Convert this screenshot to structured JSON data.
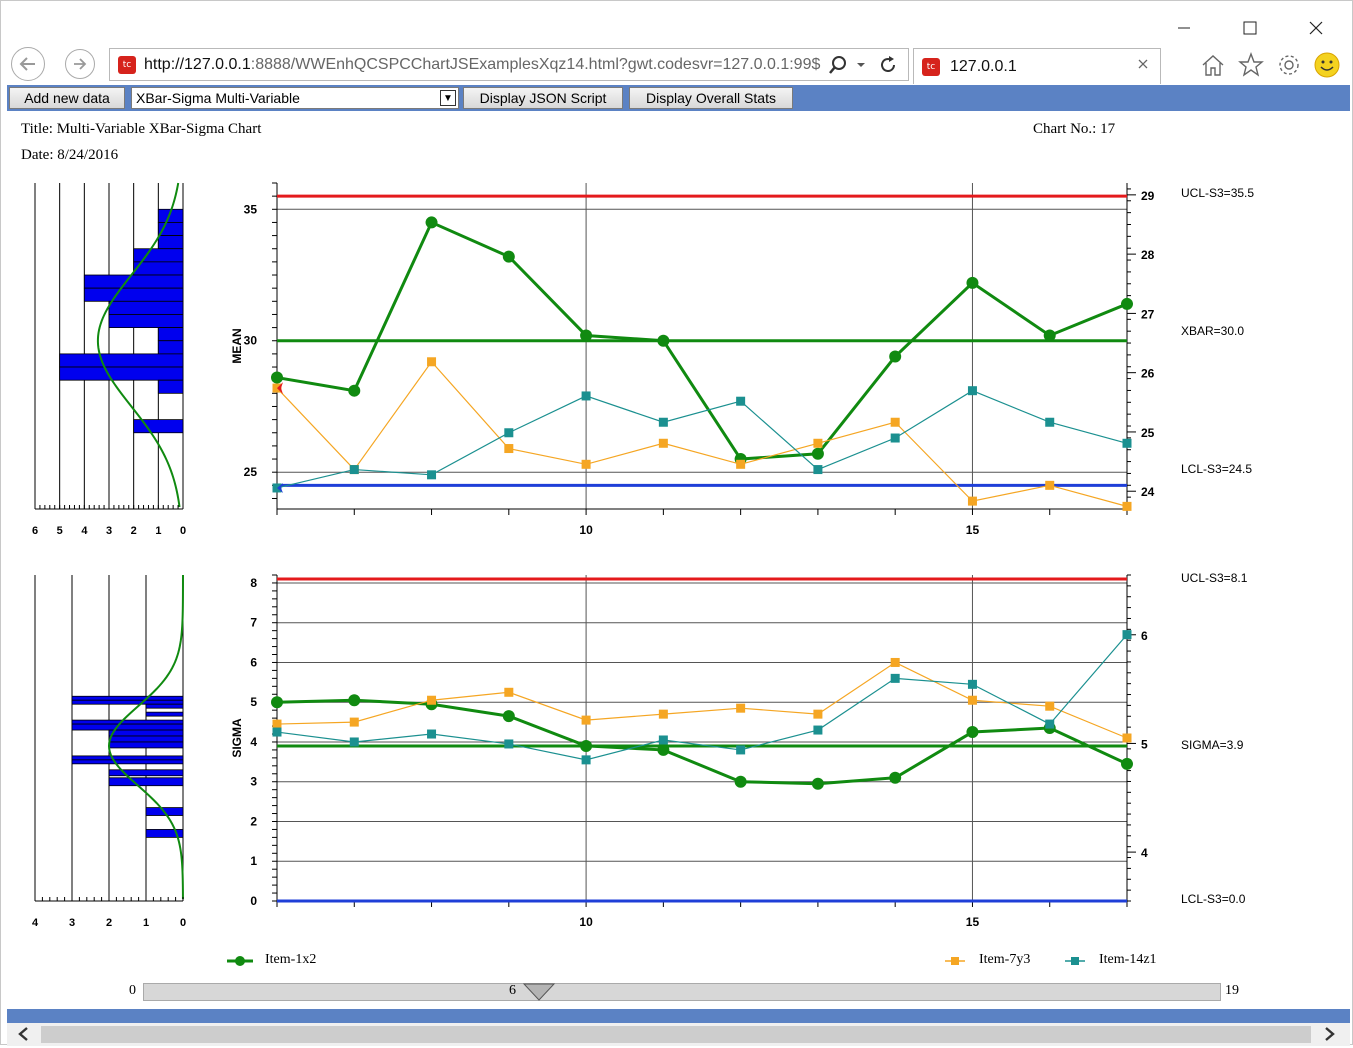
{
  "browser": {
    "url_host": "http://127.0.0.1",
    "url_rest": ":8888/WWEnhQCSPCChartJSExamplesXqz14.html?gwt.codesvr=127.0.0.1:99$",
    "tab_title": "127.0.0.1",
    "icons": [
      "back-icon",
      "forward-icon",
      "search-icon",
      "dropdown-icon",
      "refresh-icon",
      "close-tab-icon",
      "home-icon",
      "star-icon",
      "gear-icon",
      "smiley-icon",
      "minimize-icon",
      "maximize-icon",
      "close-icon"
    ]
  },
  "toolbar": {
    "add_label": "Add new data",
    "select_value": "XBar-Sigma Multi-Variable",
    "json_label": "Display JSON Script",
    "stats_label": "Display Overall Stats"
  },
  "header": {
    "title": "Title: Multi-Variable XBar-Sigma Chart",
    "date": "Date: 8/24/2016",
    "chart_no": "Chart No.: 17"
  },
  "colors": {
    "ucl": "#e41a1c",
    "lcl": "#1f3fd8",
    "center": "#108a10",
    "item1": "#108a10",
    "item2": "#f5a623",
    "item3": "#1b9090",
    "hist": "#0000ee",
    "toolbar": "#5b82c4"
  },
  "chart_data": [
    {
      "type": "line",
      "name": "mean",
      "ylabel": "MEAN",
      "x": [
        6,
        7,
        8,
        9,
        10,
        11,
        12,
        13,
        14,
        15,
        16,
        17
      ],
      "xticks": [
        "10",
        "15"
      ],
      "ylim": [
        23.6,
        36
      ],
      "yticks": [
        "25",
        "30",
        "35"
      ],
      "y2ticks": [
        "24",
        "25",
        "26",
        "27",
        "28",
        "29"
      ],
      "series": [
        {
          "name": "Item-1x2",
          "values": [
            28.6,
            28.1,
            34.5,
            33.2,
            30.2,
            30.0,
            25.5,
            25.7,
            29.4,
            32.2,
            30.2,
            31.4
          ]
        },
        {
          "name": "Item-7y3",
          "values": [
            28.2,
            25.1,
            29.2,
            25.9,
            25.3,
            26.1,
            25.3,
            26.1,
            26.9,
            23.9,
            24.5,
            23.7
          ]
        },
        {
          "name": "Item-14z1",
          "values": [
            24.4,
            25.1,
            24.9,
            26.5,
            27.9,
            26.9,
            27.7,
            25.1,
            26.3,
            28.1,
            26.9,
            26.1
          ]
        }
      ],
      "limits": [
        {
          "label": "UCL-S3=35.5",
          "value": 35.5
        },
        {
          "label": "XBAR=30.0",
          "value": 30.0
        },
        {
          "label": "LCL-S3=24.5",
          "value": 24.5
        }
      ],
      "histogram": {
        "bins": [
          {
            "from": 34.5,
            "to": 35.0,
            "count": 1
          },
          {
            "from": 34.0,
            "to": 34.5,
            "count": 1
          },
          {
            "from": 33.5,
            "to": 34.0,
            "count": 1
          },
          {
            "from": 33.0,
            "to": 33.5,
            "count": 2
          },
          {
            "from": 32.5,
            "to": 33.0,
            "count": 2
          },
          {
            "from": 32.0,
            "to": 32.5,
            "count": 4
          },
          {
            "from": 31.5,
            "to": 32.0,
            "count": 4
          },
          {
            "from": 31.0,
            "to": 31.5,
            "count": 3
          },
          {
            "from": 30.5,
            "to": 31.0,
            "count": 3
          },
          {
            "from": 30.0,
            "to": 30.5,
            "count": 1
          },
          {
            "from": 29.5,
            "to": 30.0,
            "count": 1
          },
          {
            "from": 29.0,
            "to": 29.5,
            "count": 5
          },
          {
            "from": 28.5,
            "to": 29.0,
            "count": 5
          },
          {
            "from": 28.0,
            "to": 28.5,
            "count": 1
          },
          {
            "from": 26.5,
            "to": 27.0,
            "count": 2
          }
        ],
        "ticks": [
          "6",
          "5",
          "4",
          "3",
          "2",
          "1",
          "0"
        ],
        "xmax": 6
      }
    },
    {
      "type": "line",
      "name": "sigma",
      "ylabel": "SIGMA",
      "x": [
        6,
        7,
        8,
        9,
        10,
        11,
        12,
        13,
        14,
        15,
        16,
        17
      ],
      "xticks": [
        "10",
        "15"
      ],
      "ylim": [
        0,
        8.2
      ],
      "yticks": [
        "0",
        "1",
        "2",
        "3",
        "4",
        "5",
        "6",
        "7",
        "8"
      ],
      "y2ticks": [
        "4",
        "5",
        "6"
      ],
      "series": [
        {
          "name": "Item-1x2",
          "values": [
            5.0,
            5.05,
            4.95,
            4.65,
            3.9,
            3.8,
            3.0,
            2.95,
            3.1,
            4.25,
            4.35,
            3.45
          ]
        },
        {
          "name": "Item-7y3",
          "values": [
            4.45,
            4.5,
            5.05,
            5.25,
            4.55,
            4.7,
            4.85,
            4.7,
            6.0,
            5.05,
            4.9,
            4.1
          ]
        },
        {
          "name": "Item-14z1",
          "values": [
            4.25,
            4.0,
            4.2,
            3.95,
            3.55,
            4.05,
            3.8,
            4.3,
            5.6,
            5.45,
            4.45,
            6.7
          ]
        }
      ],
      "limits": [
        {
          "label": "UCL-S3=8.1",
          "value": 8.1
        },
        {
          "label": "SIGMA=3.9",
          "value": 3.9
        },
        {
          "label": "LCL-S3=0.0",
          "value": 0.0
        }
      ],
      "histogram": {
        "bins": [
          {
            "from": 5.05,
            "to": 5.15,
            "count": 3
          },
          {
            "from": 4.95,
            "to": 5.05,
            "count": 3
          },
          {
            "from": 4.85,
            "to": 4.95,
            "count": 1
          },
          {
            "from": 4.65,
            "to": 4.75,
            "count": 1
          },
          {
            "from": 4.45,
            "to": 4.55,
            "count": 3
          },
          {
            "from": 4.3,
            "to": 4.45,
            "count": 3
          },
          {
            "from": 4.15,
            "to": 4.3,
            "count": 2
          },
          {
            "from": 4.0,
            "to": 4.15,
            "count": 2
          },
          {
            "from": 3.85,
            "to": 4.0,
            "count": 2
          },
          {
            "from": 3.55,
            "to": 3.65,
            "count": 3
          },
          {
            "from": 3.45,
            "to": 3.55,
            "count": 3
          },
          {
            "from": 3.15,
            "to": 3.3,
            "count": 2
          },
          {
            "from": 2.9,
            "to": 3.1,
            "count": 2
          },
          {
            "from": 2.15,
            "to": 2.35,
            "count": 1
          },
          {
            "from": 1.6,
            "to": 1.8,
            "count": 1
          }
        ],
        "ticks": [
          "4",
          "3",
          "2",
          "1",
          "0"
        ],
        "xmax": 4
      }
    }
  ],
  "legend": {
    "items": [
      {
        "name": "Item-1x2",
        "color": "#108a10",
        "marker": "circle"
      },
      {
        "name": "Item-7y3",
        "color": "#f5a623",
        "marker": "square"
      },
      {
        "name": "Item-14z1",
        "color": "#1b9090",
        "marker": "square"
      }
    ]
  },
  "scrollbar": {
    "min": "0",
    "value": "6",
    "max": "19"
  }
}
